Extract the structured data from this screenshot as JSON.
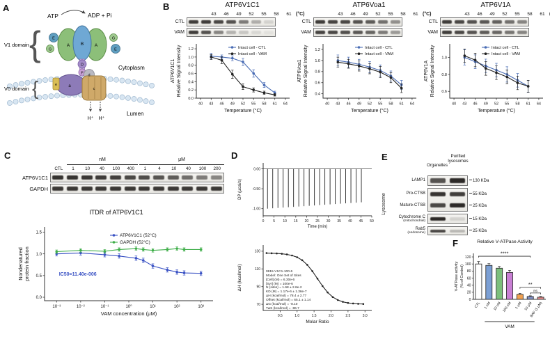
{
  "panel_a": {
    "label": "A",
    "atp": "ATP",
    "adp": "ADP + Pi",
    "v1_domain": "V1 domain",
    "v0_domain": "V0 domain",
    "cytoplasm": "Cytoplasm",
    "lumen": "Lumen",
    "proton": "H⁺",
    "subunits": {
      "a_left": "A",
      "b_mid": "B",
      "a_right": "A",
      "e1": "E",
      "g1": "G",
      "g2": "G",
      "e2": "E",
      "d_stalk": "D",
      "f_stalk": "F",
      "a0": "a",
      "d0": "d",
      "e0": "e",
      "c0": "c"
    }
  },
  "panel_b": {
    "label": "B",
    "temp_labels": [
      "43",
      "46",
      "49",
      "52",
      "55",
      "58",
      "61"
    ],
    "temp_unit": "(°C)",
    "blot_rows": [
      "CTL",
      "VAM"
    ],
    "blots": {
      "b1_ctl": [
        0.85,
        0.85,
        0.8,
        0.75,
        0.55,
        0.3,
        0.12
      ],
      "b1_vam": [
        0.85,
        0.75,
        0.5,
        0.28,
        0.18,
        0.1,
        0.05
      ],
      "b2_ctl": [
        0.85,
        0.82,
        0.8,
        0.75,
        0.7,
        0.6,
        0.45
      ],
      "b2_vam": [
        0.82,
        0.8,
        0.76,
        0.72,
        0.66,
        0.55,
        0.4
      ],
      "b3_ctl": [
        0.85,
        0.8,
        0.75,
        0.72,
        0.68,
        0.6,
        0.5
      ],
      "b3_vam": [
        0.85,
        0.8,
        0.74,
        0.7,
        0.65,
        0.58,
        0.5
      ]
    }
  },
  "panel_c": {
    "label": "C",
    "nm": "nM",
    "um": "μM",
    "lane_labels": [
      "CTL",
      "1",
      "10",
      "40",
      "100",
      "400",
      "1",
      "4",
      "10",
      "40",
      "100",
      "200"
    ],
    "blot_rows": [
      "ATP6V1C1",
      "GAPDH"
    ],
    "blots": {
      "atp6v1c1": [
        0.9,
        0.9,
        0.88,
        0.86,
        0.84,
        0.8,
        0.78,
        0.74,
        0.7,
        0.62,
        0.55,
        0.5
      ],
      "gapdh": [
        0.88,
        0.88,
        0.88,
        0.88,
        0.88,
        0.88,
        0.88,
        0.88,
        0.88,
        0.88,
        0.88,
        0.88
      ]
    }
  },
  "panel_d": {
    "label": "D",
    "fit_text": [
      "0815-V1C1-100-6",
      "Model: One Set of Sites",
      "[Cell] (M) = 6.30e-6",
      "[Syr] (M) = 100e-6",
      "N (sites) = 1.68 ± 2.6e-2",
      "KD (M) = 1.17e-6 ± 1.36e-7",
      "ΔH (kcal/mol) = 78.4 ± 2.77",
      "Offset (kcal/mol) = 65.1 ± 1.14",
      "ΔG (kcal/mol) = -8.10",
      "TΔS (kcal/mol) = -86.7"
    ]
  },
  "panel_e": {
    "label": "E",
    "col1": "Organelles",
    "col2": "Purified lysosomes",
    "side": "Lysosome",
    "rows": [
      {
        "name": "LAMP1",
        "marker": "130 KDa"
      },
      {
        "name": "Pro-CTSB",
        "marker": "55 KDa"
      },
      {
        "name": "Mature-CTSB",
        "marker": "25 KDa"
      },
      {
        "name": "Cytochrome C",
        "name2": "(mitochondrial)",
        "marker": "15 KDa"
      },
      {
        "name": "Rab5",
        "name2": "(endosome)",
        "marker": "25 KDa"
      }
    ],
    "blots": {
      "lamp1": [
        0.75,
        0.95
      ],
      "pro_ctsb": [
        0.9,
        0.85
      ],
      "mature_ctsb": [
        0.8,
        0.95
      ],
      "cytc": [
        0.95,
        0.12
      ],
      "rab5": [
        0.8,
        0.25
      ]
    }
  },
  "panel_f": {
    "label": "F"
  },
  "chart_data": [
    {
      "id": "b1",
      "type": "line",
      "title": "ATP6V1C1",
      "xlabel": "Temperature (°C)",
      "ylabel": [
        "ATP6V1C1",
        "Relative Signal Intensity"
      ],
      "x": [
        43,
        46,
        49,
        52,
        55,
        58,
        61
      ],
      "xlim": [
        38.8,
        65.2
      ],
      "xticks": [
        40,
        43,
        46,
        49,
        52,
        55,
        58,
        61,
        64
      ],
      "ylim": [
        0,
        1.32
      ],
      "yticks": [
        0,
        0.2,
        0.4,
        0.6,
        0.8,
        1.0,
        1.2
      ],
      "ytick_labels": [
        "0.0",
        "0.2",
        "0.4",
        "0.6",
        "0.8",
        "1.0",
        "1.2"
      ],
      "series": [
        {
          "name": "Intact cell - CTL",
          "color": "#4a6db5",
          "values": [
            1.02,
            1.0,
            0.97,
            0.88,
            0.6,
            0.32,
            0.13
          ],
          "err": [
            0.07,
            0.05,
            0.06,
            0.09,
            0.09,
            0.06,
            0.04
          ]
        },
        {
          "name": "Intact cell - VAM",
          "color": "#222222",
          "values": [
            1.0,
            0.92,
            0.58,
            0.28,
            0.2,
            0.13,
            0.08
          ],
          "err": [
            0.06,
            0.08,
            0.1,
            0.07,
            0.05,
            0.04,
            0.03
          ]
        }
      ]
    },
    {
      "id": "b2",
      "type": "line",
      "title": "ATP6Voa1",
      "xlabel": "Temperature (°C)",
      "ylabel": [
        "ATP6Voa1",
        "Relative Signal Intensity"
      ],
      "x": [
        43,
        46,
        49,
        52,
        55,
        58,
        61
      ],
      "xlim": [
        38.8,
        65.2
      ],
      "xticks": [
        40,
        43,
        46,
        49,
        52,
        55,
        58,
        61,
        64
      ],
      "ylim": [
        0.32,
        1.3
      ],
      "yticks": [
        0.4,
        0.6,
        0.8,
        1.0,
        1.2
      ],
      "ytick_labels": [
        "0.4",
        "0.6",
        "0.8",
        "1.0",
        "1.2"
      ],
      "series": [
        {
          "name": "Intact cell - CTL",
          "color": "#4a6db5",
          "values": [
            1.0,
            0.97,
            0.93,
            0.88,
            0.82,
            0.72,
            0.56
          ],
          "err": [
            0.1,
            0.09,
            0.09,
            0.1,
            0.1,
            0.09,
            0.08
          ]
        },
        {
          "name": "Intact cell - VAM",
          "color": "#222222",
          "values": [
            0.97,
            0.94,
            0.9,
            0.85,
            0.79,
            0.69,
            0.5
          ],
          "err": [
            0.09,
            0.08,
            0.09,
            0.09,
            0.1,
            0.09,
            0.08
          ]
        }
      ]
    },
    {
      "id": "b3",
      "type": "line",
      "title": "ATP6V1A",
      "xlabel": "Temperature (°C)",
      "ylabel": [
        "ATP6V1A",
        "Relative Signal Intensity"
      ],
      "x": [
        43,
        46,
        49,
        52,
        55,
        58,
        61
      ],
      "xlim": [
        38.8,
        65.2
      ],
      "xticks": [
        40,
        43,
        46,
        49,
        52,
        55,
        58,
        61,
        64
      ],
      "ylim": [
        0.52,
        1.16
      ],
      "yticks": [
        0.6,
        0.8,
        1.0
      ],
      "ytick_labels": [
        "0.6",
        "0.8",
        "1.0"
      ],
      "series": [
        {
          "name": "Intact cell - CTL",
          "color": "#4a6db5",
          "values": [
            1.0,
            0.95,
            0.9,
            0.85,
            0.8,
            0.73,
            0.66
          ],
          "err": [
            0.09,
            0.08,
            0.08,
            0.08,
            0.09,
            0.08,
            0.07
          ]
        },
        {
          "name": "Intact cell - VAM",
          "color": "#222222",
          "values": [
            1.02,
            0.97,
            0.87,
            0.82,
            0.77,
            0.7,
            0.66
          ],
          "err": [
            0.08,
            0.08,
            0.08,
            0.08,
            0.08,
            0.08,
            0.07
          ]
        }
      ]
    },
    {
      "id": "c",
      "type": "line",
      "title": "ITDR of ATP6V1C1",
      "xlabel": "VAM concentration (μM)",
      "ylabel": [
        "Nondenatured",
        "protein fraction"
      ],
      "x": [
        -3,
        -2,
        -1,
        -0.4,
        0.3,
        0.6,
        1,
        1.6,
        2,
        2.3,
        3
      ],
      "xlim": [
        -3.5,
        3.5
      ],
      "xticks": [
        -3,
        -2,
        -1,
        0,
        1,
        2,
        3
      ],
      "xtick_labels": [
        "10⁻³",
        "10⁻²",
        "10⁻¹",
        "10⁰",
        "10¹",
        "10²",
        "10³"
      ],
      "ylim": [
        -0.08,
        1.62
      ],
      "yticks": [
        0,
        0.5,
        1.0,
        1.5
      ],
      "ytick_labels": [
        "0.0",
        "0.5",
        "1.0",
        "1.5"
      ],
      "series": [
        {
          "name": "ATP6V1C1 (52°C)",
          "color": "#3a52c4",
          "values": [
            1.0,
            1.02,
            0.98,
            0.95,
            0.9,
            0.85,
            0.72,
            0.63,
            0.58,
            0.56,
            0.55
          ],
          "err": [
            0.05,
            0.05,
            0.05,
            0.05,
            0.05,
            0.05,
            0.05,
            0.05,
            0.05,
            0.05,
            0.05
          ]
        },
        {
          "name": "GAPDH (52°C)",
          "color": "#3fae49",
          "values": [
            1.05,
            1.08,
            1.06,
            1.1,
            1.12,
            1.1,
            1.08,
            1.1,
            1.12,
            1.1,
            1.1
          ],
          "err": [
            0.04,
            0.04,
            0.04,
            0.04,
            0.04,
            0.04,
            0.04,
            0.04,
            0.04,
            0.04,
            0.04
          ]
        }
      ],
      "annotation": {
        "text": "IC50=11.40e-006",
        "x": -2.9,
        "y": 0.5,
        "color": "#3a52c4"
      }
    },
    {
      "id": "d_top",
      "type": "itc_top",
      "xlabel": "Time (min)",
      "ylabel": "DP (μcal/s)",
      "xlim": [
        0,
        50
      ],
      "xticks": [
        0,
        5,
        10,
        15,
        20,
        25,
        30,
        35,
        40,
        45,
        50
      ],
      "ylim": [
        -1.18,
        0.15
      ],
      "yticks": [
        0,
        -0.5,
        -1
      ],
      "ytick_labels": [
        "0.00",
        "-0.50",
        "-1.00"
      ],
      "spike_start": 2,
      "spike_step": 2.4,
      "spike_count": 19,
      "spike_depth_start": 1.0,
      "spike_depth_end": 0.84
    },
    {
      "id": "d_bot",
      "type": "line",
      "xlabel": "Molar Ratio",
      "ylabel": [
        "ΔH (kcal/mol)"
      ],
      "x": [
        0.1,
        0.25,
        0.4,
        0.55,
        0.7,
        0.85,
        1.0,
        1.15,
        1.3,
        1.45,
        1.6,
        1.75,
        1.9,
        2.05,
        2.2,
        2.35,
        2.5,
        2.65,
        2.8,
        2.95
      ],
      "xlim": [
        0,
        3.2
      ],
      "xticks": [
        0.5,
        1.0,
        1.5,
        2.0,
        2.5,
        3.0
      ],
      "xtick_labels": [
        "0.5",
        "1.0",
        "1.5",
        "2.0",
        "2.5",
        "3.0"
      ],
      "ylim": [
        63,
        137
      ],
      "yticks": [
        70,
        90,
        110,
        130
      ],
      "ytick_labels": [
        "70",
        "90",
        "110",
        "130"
      ],
      "series": [
        {
          "name": "ΔH",
          "color": "#222222",
          "values": [
            127.9,
            127.7,
            127.5,
            127.1,
            126.4,
            125.2,
            123.2,
            119.8,
            114.6,
            107.4,
            99.0,
            90.6,
            83.4,
            78.2,
            74.8,
            72.7,
            71.5,
            70.9,
            70.5,
            70.3
          ]
        }
      ]
    },
    {
      "id": "f",
      "type": "bar",
      "title": "Relative V-ATPase Activity",
      "ylabel": [
        "V-ATPase activity",
        "(% of Control)"
      ],
      "categories": [
        "CTL",
        "1 nM",
        "10 nM",
        "100 nM",
        "1 μM",
        "10 μM",
        "BAF (1 μM)"
      ],
      "values": [
        100,
        96,
        88,
        76,
        14,
        8,
        6
      ],
      "errors": [
        7,
        5,
        5,
        6,
        3,
        2,
        2
      ],
      "colors": [
        "#ffffff",
        "#7b9fd4",
        "#7cbf7c",
        "#c97fd4",
        "#f0a050",
        "#8090c8",
        "#ef9191"
      ],
      "ylim": [
        0,
        130
      ],
      "yticks": [
        0,
        20,
        40,
        60,
        80,
        100,
        120
      ],
      "group_label": "VAM",
      "group_span": [
        1,
        5
      ],
      "sig": [
        {
          "label": "****",
          "span": [
            0,
            5
          ],
          "y": 122
        },
        {
          "label": "**",
          "span": [
            4,
            6
          ],
          "y": 34
        },
        {
          "label": "ns",
          "span": [
            5,
            6
          ],
          "y": 18
        }
      ]
    }
  ]
}
